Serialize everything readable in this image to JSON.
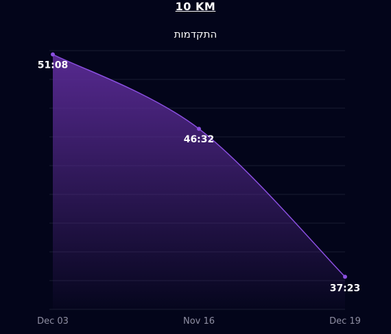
{
  "header": {
    "title": "10 KM",
    "subtitle": "התקדמות"
  },
  "colors": {
    "background": "#03051a",
    "line": "#8a4fe0",
    "area_top": "#5b2b96",
    "gridline": "#1a1d33"
  },
  "chart_data": {
    "type": "area",
    "categories": [
      "Dec 03",
      "Nov 16",
      "Dec 19"
    ],
    "values": [
      "51:08",
      "46:32",
      "37:23"
    ],
    "values_seconds": [
      3068,
      2792,
      2243
    ],
    "xlabel": "",
    "ylabel": "",
    "grid": true,
    "legend": "none"
  }
}
